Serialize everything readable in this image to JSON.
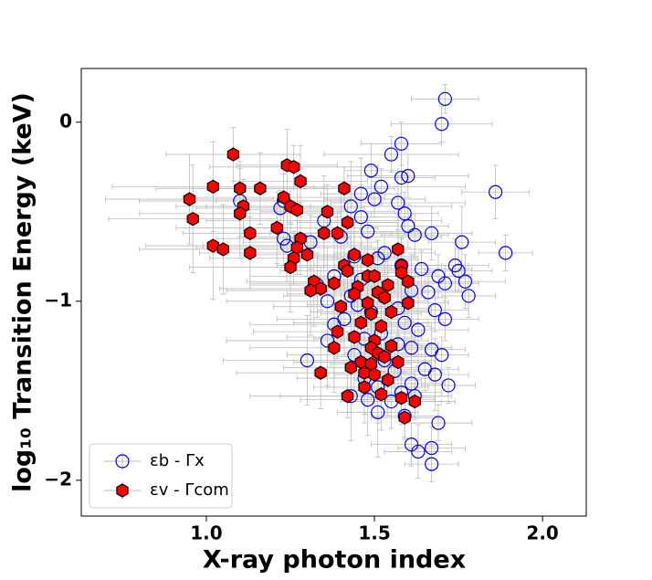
{
  "chart_data": {
    "type": "scatter",
    "x_label": "X-ray photon index",
    "y_label": "log₁₀ Transition Energy (keV)",
    "xlim": [
      0.628,
      2.13
    ],
    "ylim": [
      -2.2,
      0.3
    ],
    "xticks": [
      {
        "value": 1,
        "label": "1.0"
      },
      1.5,
      {
        "value": 2,
        "label": "2.0"
      }
    ],
    "yticks": [
      {
        "value": -2,
        "label": "−2"
      },
      {
        "value": -1,
        "label": "−1"
      },
      0
    ],
    "legend": "lower left",
    "errorbar_color": "#bbbbbb",
    "series": [
      {
        "name": "εb - Γx",
        "marker": "circle",
        "color": "none",
        "edgecolor": "#0000ff",
        "x": [
          1.71,
          1.7,
          1.58,
          1.55,
          1.49,
          1.6,
          1.58,
          1.52,
          1.86,
          1.46,
          1.5,
          1.57,
          1.43,
          1.59,
          1.1,
          1.23,
          1.22,
          1.46,
          1.35,
          1.6,
          1.23,
          1.24,
          1.48,
          1.62,
          1.67,
          1.89,
          1.76,
          1.4,
          1.31,
          1.53,
          1.51,
          1.44,
          1.74,
          1.75,
          1.64,
          1.58,
          1.46,
          1.38,
          1.33,
          1.69,
          1.71,
          1.77,
          1.78,
          1.61,
          1.66,
          1.43,
          1.36,
          1.45,
          1.57,
          1.68,
          1.49,
          1.41,
          1.38,
          1.59,
          1.71,
          1.63,
          1.52,
          1.36,
          1.47,
          1.57,
          1.67,
          1.61,
          1.7,
          1.44,
          1.3,
          1.53,
          1.65,
          1.68,
          1.56,
          1.47,
          1.61,
          1.72,
          1.51,
          1.58,
          1.43,
          1.62,
          1.48,
          1.55,
          1.51,
          1.59,
          1.69,
          1.61,
          1.63,
          1.67,
          1.67
        ],
        "values": [
          0.13,
          -0.01,
          -0.12,
          -0.18,
          -0.27,
          -0.3,
          -0.31,
          -0.36,
          -0.39,
          -0.4,
          -0.43,
          -0.45,
          -0.47,
          -0.51,
          -0.44,
          -0.44,
          -0.48,
          -0.53,
          -0.55,
          -0.58,
          -0.65,
          -0.69,
          -0.61,
          -0.63,
          -0.62,
          -0.73,
          -0.67,
          -0.64,
          -0.67,
          -0.73,
          -0.76,
          -0.75,
          -0.8,
          -0.83,
          -0.82,
          -0.8,
          -0.88,
          -0.86,
          -0.91,
          -0.86,
          -0.9,
          -0.89,
          -0.97,
          -0.94,
          -0.95,
          -0.97,
          -1.0,
          -1.02,
          -1.04,
          -1.05,
          -1.06,
          -1.1,
          -1.13,
          -1.12,
          -1.1,
          -1.16,
          -1.18,
          -1.22,
          -1.21,
          -1.24,
          -1.27,
          -1.26,
          -1.3,
          -1.3,
          -1.33,
          -1.33,
          -1.38,
          -1.41,
          -1.39,
          -1.43,
          -1.46,
          -1.47,
          -1.48,
          -1.51,
          -1.53,
          -1.53,
          -1.55,
          -1.56,
          -1.62,
          -1.64,
          -1.68,
          -1.8,
          -1.84,
          -1.82,
          -1.91
        ],
        "xerr": [
          0.1,
          0.15,
          0.12,
          0.2,
          0.08,
          0.18,
          0.1,
          0.25,
          0.1,
          0.12,
          0.15,
          0.2,
          0.3,
          0.1,
          0.3,
          0.2,
          0.25,
          0.15,
          0.35,
          0.12,
          0.2,
          0.25,
          0.15,
          0.1,
          0.12,
          0.08,
          0.1,
          0.3,
          0.2,
          0.15,
          0.12,
          0.18,
          0.1,
          0.1,
          0.15,
          0.2,
          0.12,
          0.25,
          0.2,
          0.1,
          0.1,
          0.12,
          0.08,
          0.15,
          0.12,
          0.2,
          0.3,
          0.15,
          0.1,
          0.1,
          0.18,
          0.2,
          0.25,
          0.12,
          0.1,
          0.15,
          0.1,
          0.3,
          0.15,
          0.12,
          0.1,
          0.12,
          0.08,
          0.2,
          0.25,
          0.15,
          0.1,
          0.1,
          0.12,
          0.2,
          0.1,
          0.08,
          0.15,
          0.12,
          0.3,
          0.1,
          0.2,
          0.15,
          0.12,
          0.1,
          0.1,
          0.12,
          0.1,
          0.1,
          0.08
        ],
        "yerr": [
          0.08,
          0.1,
          0.12,
          0.1,
          0.15,
          0.12,
          0.2,
          0.1,
          0.15,
          0.2,
          0.1,
          0.15,
          0.25,
          0.12,
          0.2,
          0.15,
          0.1,
          0.18,
          0.25,
          0.12,
          0.15,
          0.2,
          0.1,
          0.12,
          0.15,
          0.1,
          0.2,
          0.25,
          0.15,
          0.12,
          0.1,
          0.2,
          0.15,
          0.12,
          0.1,
          0.15,
          0.2,
          0.25,
          0.18,
          0.12,
          0.1,
          0.15,
          0.12,
          0.2,
          0.1,
          0.25,
          0.3,
          0.15,
          0.2,
          0.12,
          0.15,
          0.2,
          0.3,
          0.15,
          0.12,
          0.2,
          0.15,
          0.25,
          0.2,
          0.18,
          0.12,
          0.15,
          0.1,
          0.2,
          0.25,
          0.15,
          0.12,
          0.2,
          0.15,
          0.25,
          0.12,
          0.1,
          0.2,
          0.15,
          0.25,
          0.12,
          0.2,
          0.15,
          0.25,
          0.12,
          0.1,
          0.12,
          0.15,
          0.12,
          0.1
        ]
      },
      {
        "name": "εv - Γcom",
        "marker": "hexagon",
        "color": "#ff0000",
        "edgecolor": "#000000",
        "x": [
          1.08,
          1.24,
          1.26,
          1.28,
          1.02,
          1.1,
          1.16,
          1.41,
          0.95,
          1.23,
          1.11,
          1.25,
          1.27,
          1.1,
          0.96,
          1.36,
          1.42,
          1.21,
          1.13,
          1.35,
          1.39,
          1.28,
          1.02,
          1.05,
          1.27,
          1.13,
          1.3,
          1.44,
          1.57,
          1.26,
          1.48,
          1.41,
          1.25,
          1.58,
          1.42,
          1.48,
          1.5,
          1.58,
          1.32,
          1.38,
          1.34,
          1.54,
          1.45,
          1.6,
          1.31,
          1.44,
          1.51,
          1.53,
          1.48,
          1.6,
          1.4,
          1.49,
          1.55,
          1.46,
          1.52,
          1.39,
          1.44,
          1.5,
          1.38,
          1.49,
          1.55,
          1.51,
          1.53,
          1.46,
          1.49,
          1.57,
          1.43,
          1.34,
          1.47,
          1.5,
          1.54,
          1.47,
          1.42,
          1.52,
          1.58,
          1.62,
          1.59
        ],
        "values": [
          -0.18,
          -0.24,
          -0.25,
          -0.33,
          -0.36,
          -0.37,
          -0.37,
          -0.37,
          -0.43,
          -0.42,
          -0.47,
          -0.47,
          -0.49,
          -0.51,
          -0.54,
          -0.5,
          -0.56,
          -0.59,
          -0.62,
          -0.62,
          -0.62,
          -0.65,
          -0.69,
          -0.71,
          -0.7,
          -0.73,
          -0.74,
          -0.74,
          -0.71,
          -0.76,
          -0.77,
          -0.8,
          -0.81,
          -0.8,
          -0.83,
          -0.86,
          -0.86,
          -0.84,
          -0.89,
          -0.9,
          -0.93,
          -0.91,
          -0.92,
          -0.89,
          -0.94,
          -0.96,
          -0.95,
          -0.98,
          -1.01,
          -1.01,
          -1.03,
          -1.07,
          -1.06,
          -1.12,
          -1.14,
          -1.17,
          -1.2,
          -1.22,
          -1.26,
          -1.26,
          -1.25,
          -1.29,
          -1.31,
          -1.34,
          -1.35,
          -1.34,
          -1.37,
          -1.4,
          -1.4,
          -1.41,
          -1.44,
          -1.48,
          -1.53,
          -1.52,
          -1.54,
          -1.56,
          -1.65
        ],
        "xerr": [
          0.2,
          0.15,
          0.25,
          0.2,
          0.3,
          0.25,
          0.2,
          0.15,
          0.25,
          0.3,
          0.2,
          0.25,
          0.15,
          0.3,
          0.25,
          0.2,
          0.15,
          0.3,
          0.2,
          0.25,
          0.2,
          0.15,
          0.2,
          0.25,
          0.3,
          0.15,
          0.2,
          0.12,
          0.1,
          0.25,
          0.15,
          0.2,
          0.3,
          0.12,
          0.2,
          0.15,
          0.12,
          0.1,
          0.2,
          0.25,
          0.3,
          0.12,
          0.15,
          0.1,
          0.25,
          0.2,
          0.15,
          0.12,
          0.1,
          0.12,
          0.2,
          0.15,
          0.12,
          0.2,
          0.15,
          0.25,
          0.2,
          0.12,
          0.25,
          0.15,
          0.12,
          0.1,
          0.15,
          0.2,
          0.12,
          0.1,
          0.2,
          0.25,
          0.15,
          0.12,
          0.1,
          0.15,
          0.2,
          0.12,
          0.1,
          0.12,
          0.1
        ],
        "yerr": [
          0.15,
          0.2,
          0.12,
          0.2,
          0.25,
          0.15,
          0.2,
          0.12,
          0.25,
          0.2,
          0.15,
          0.1,
          0.2,
          0.25,
          0.3,
          0.15,
          0.12,
          0.2,
          0.15,
          0.25,
          0.12,
          0.2,
          0.3,
          0.25,
          0.15,
          0.2,
          0.12,
          0.15,
          0.2,
          0.15,
          0.12,
          0.2,
          0.25,
          0.15,
          0.1,
          0.12,
          0.15,
          0.2,
          0.25,
          0.15,
          0.12,
          0.2,
          0.15,
          0.12,
          0.25,
          0.15,
          0.12,
          0.2,
          0.15,
          0.1,
          0.2,
          0.15,
          0.12,
          0.2,
          0.25,
          0.15,
          0.2,
          0.12,
          0.25,
          0.15,
          0.12,
          0.2,
          0.15,
          0.12,
          0.2,
          0.15,
          0.25,
          0.2,
          0.15,
          0.12,
          0.2,
          0.15,
          0.12,
          0.2,
          0.15,
          0.1,
          0.12
        ]
      }
    ]
  }
}
